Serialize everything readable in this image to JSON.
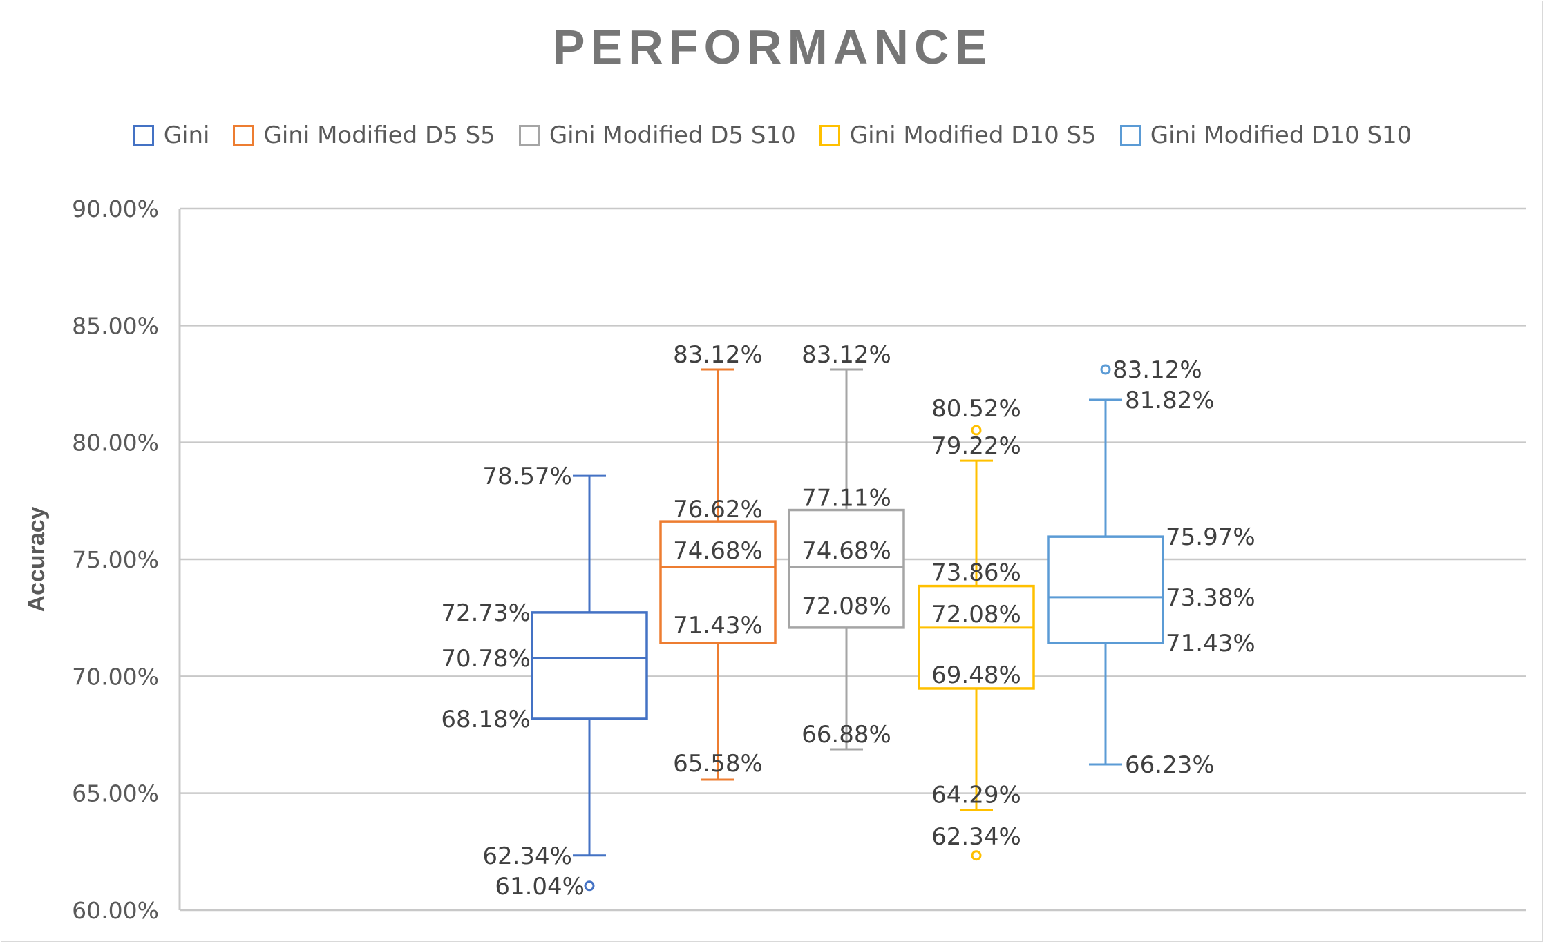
{
  "chart_data": {
    "type": "box",
    "title": "PERFORMANCE",
    "ylabel": "Accuracy",
    "xlabel": "",
    "ylim": [
      0.6,
      0.9
    ],
    "y_ticks": [
      0.6,
      0.65,
      0.7,
      0.75,
      0.8,
      0.85,
      0.9
    ],
    "y_tick_labels": [
      "60.00%",
      "65.00%",
      "70.00%",
      "75.00%",
      "80.00%",
      "85.00%",
      "90.00%"
    ],
    "grid": true,
    "legend_position": "top",
    "series": [
      {
        "name": "Gini",
        "color": "#4472c4",
        "min": 0.6234,
        "q1": 0.6818,
        "median": 0.7078,
        "q3": 0.7273,
        "max": 0.7857,
        "outliers": [
          0.6104
        ],
        "labels": {
          "min": "62.34%",
          "q1": "68.18%",
          "median": "70.78%",
          "q3": "72.73%",
          "max": "78.57%",
          "outliers": [
            "61.04%"
          ]
        }
      },
      {
        "name": "Gini Modified D5 S5",
        "color": "#ed7d31",
        "min": 0.6558,
        "q1": 0.7143,
        "median": 0.7468,
        "q3": 0.7662,
        "max": 0.8312,
        "outliers": [],
        "labels": {
          "min": "65.58%",
          "q1": "71.43%",
          "median": "74.68%",
          "q3": "76.62%",
          "max": "83.12%",
          "outliers": []
        }
      },
      {
        "name": "Gini Modified D5 S10",
        "color": "#a5a5a5",
        "min": 0.6688,
        "q1": 0.7208,
        "median": 0.7468,
        "q3": 0.7711,
        "max": 0.8312,
        "outliers": [],
        "labels": {
          "min": "66.88%",
          "q1": "72.08%",
          "median": "74.68%",
          "q3": "77.11%",
          "max": "83.12%",
          "outliers": []
        }
      },
      {
        "name": "Gini Modified D10 S5",
        "color": "#ffc000",
        "min": 0.6429,
        "q1": 0.6948,
        "median": 0.7208,
        "q3": 0.7386,
        "max": 0.7922,
        "outliers": [
          0.8052,
          0.6234
        ],
        "labels": {
          "min": "64.29%",
          "q1": "69.48%",
          "median": "72.08%",
          "q3": "73.86%",
          "max": "79.22%",
          "outliers": [
            "80.52%",
            "62.34%"
          ]
        }
      },
      {
        "name": "Gini Modified D10 S10",
        "color": "#5b9bd5",
        "min": 0.6623,
        "q1": 0.7143,
        "median": 0.7338,
        "q3": 0.7597,
        "max": 0.8182,
        "outliers": [
          0.8312
        ],
        "labels": {
          "min": "66.23%",
          "q1": "71.43%",
          "median": "73.38%",
          "q3": "75.97%",
          "max": "81.82%",
          "outliers": [
            "83.12%"
          ]
        }
      }
    ]
  }
}
